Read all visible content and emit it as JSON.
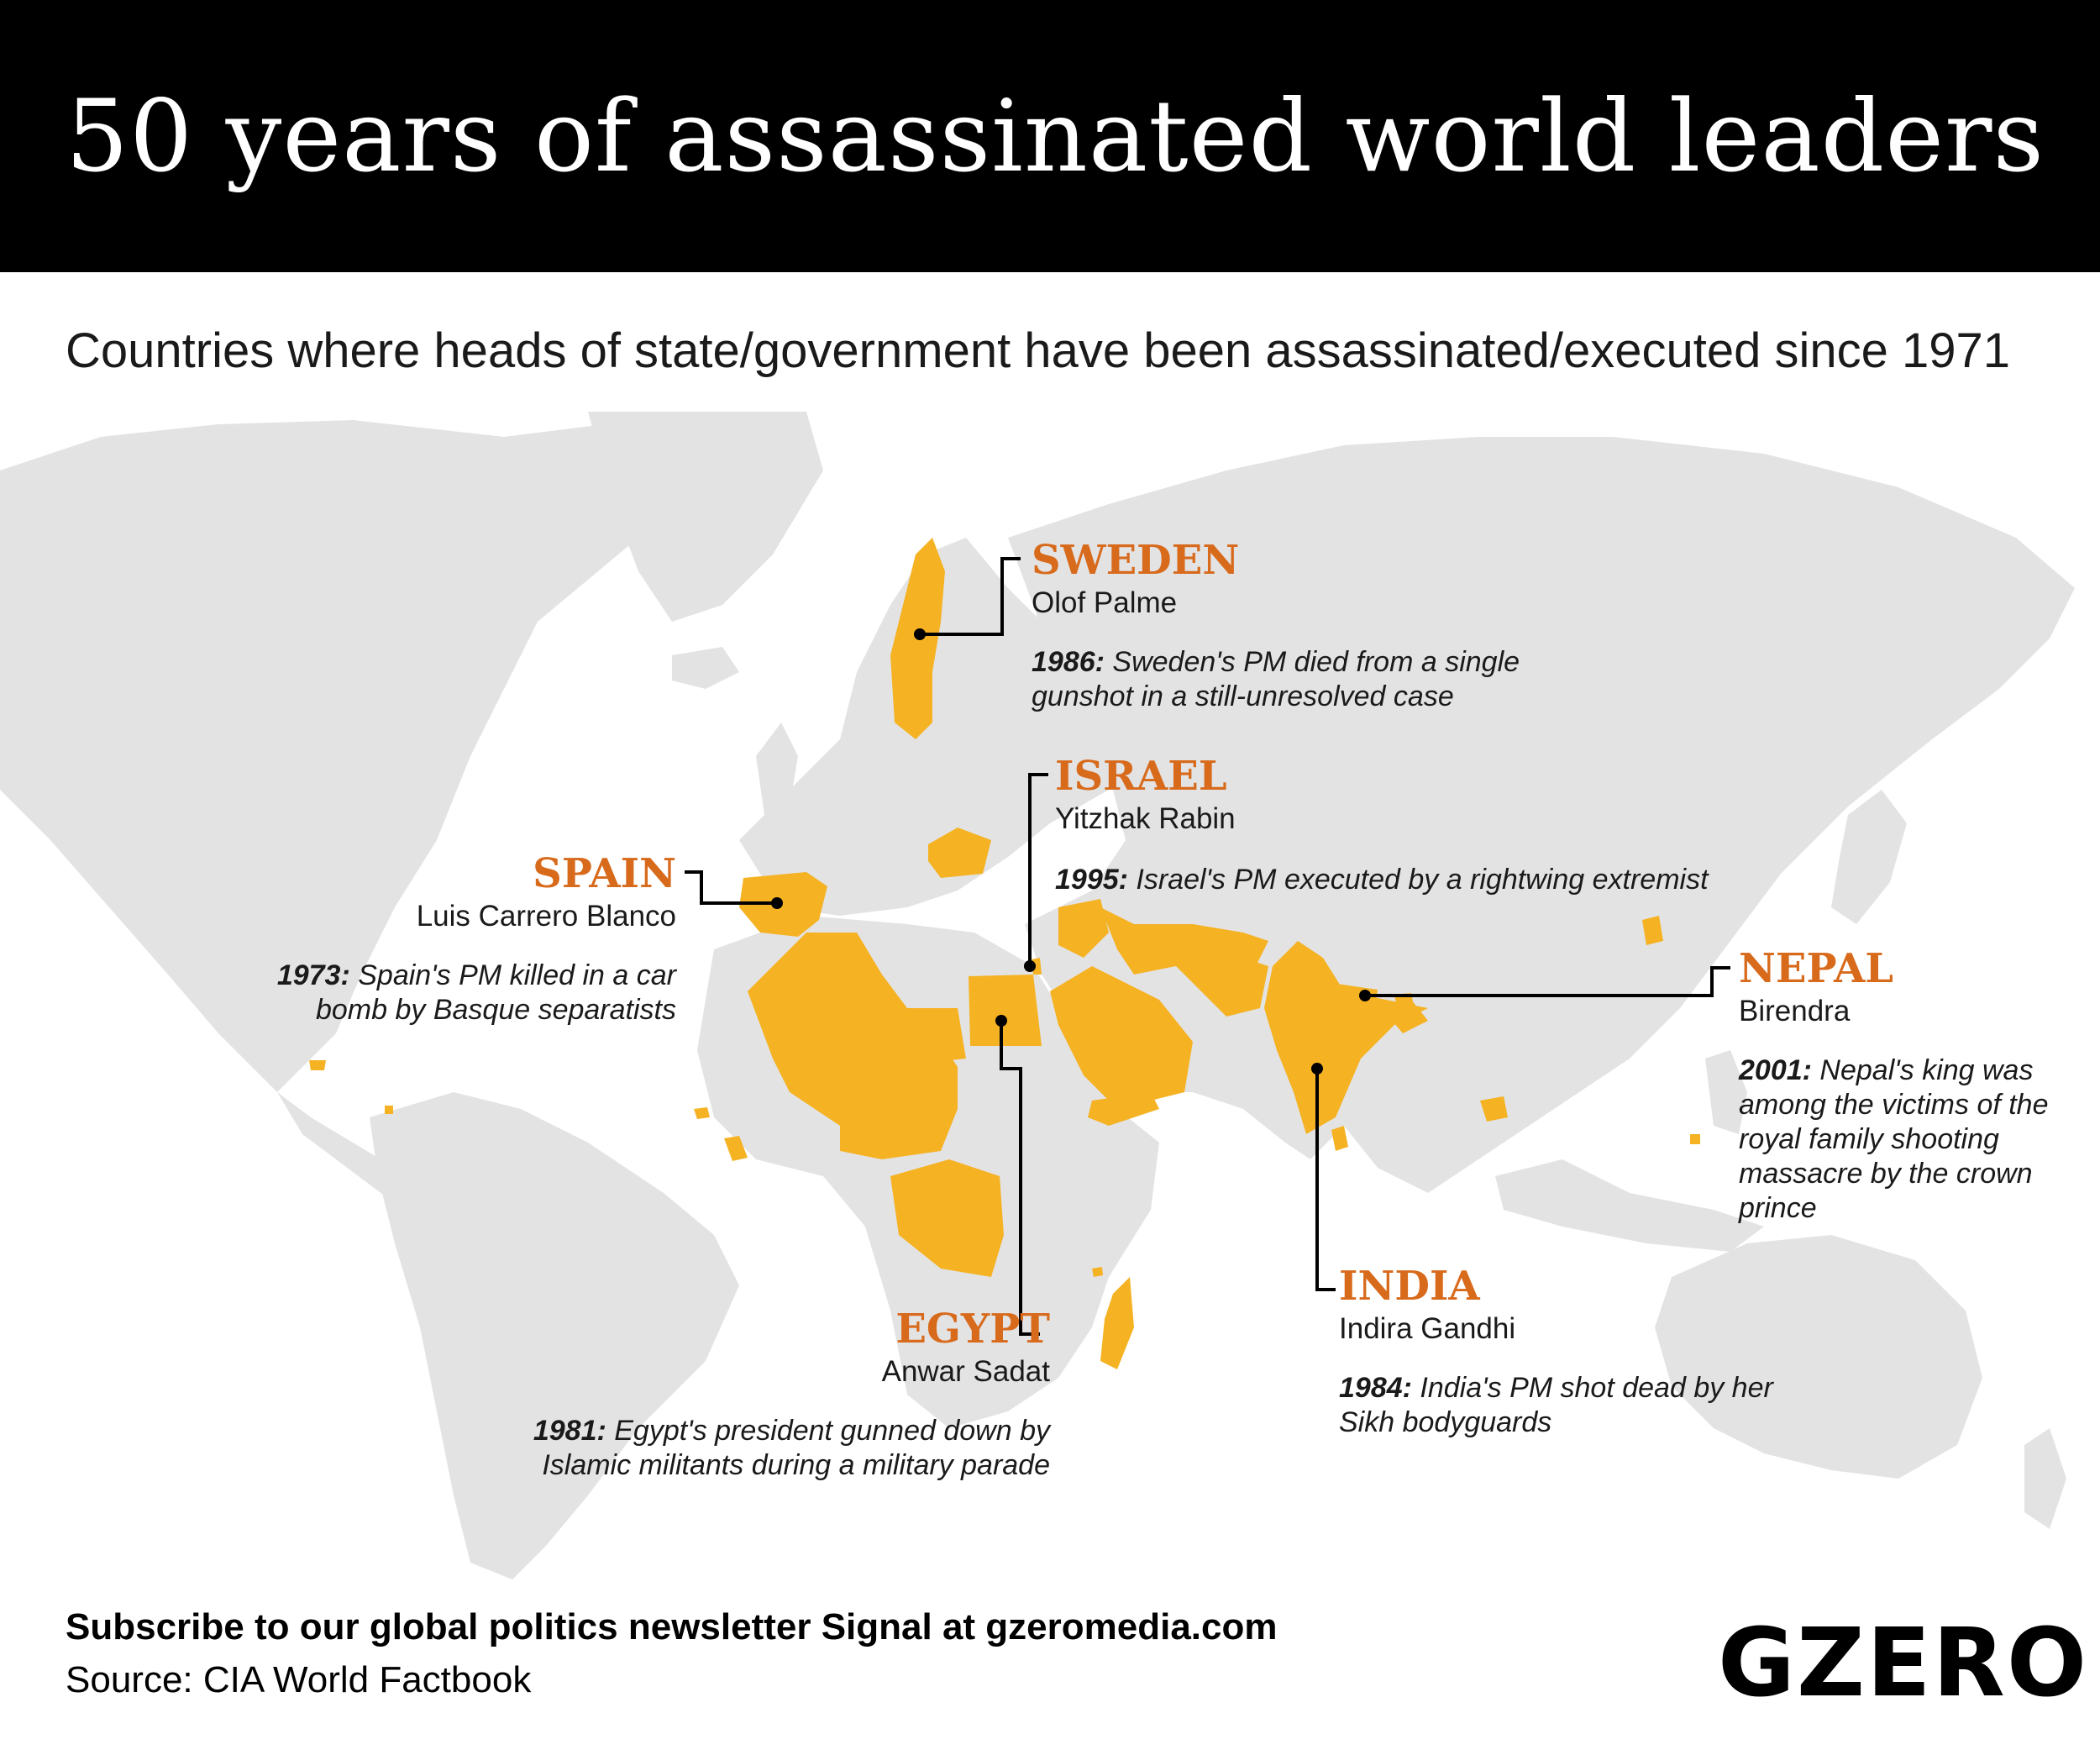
{
  "title": "50 years of assassinated world leaders",
  "subtitle": "Countries where heads of state/government have been assassinated/executed since 1971",
  "colors": {
    "highlight": "#F5B223",
    "land": "#E3E3E3",
    "header_bg": "#000000",
    "country_label": "#D86A1C",
    "leader_line": "#000000"
  },
  "callouts": {
    "sweden": {
      "country": "SWEDEN",
      "leader": "Olof Palme",
      "year": "1986:",
      "text": " Sweden's PM died from a single gunshot in a still-unresolved case"
    },
    "israel": {
      "country": "ISRAEL",
      "leader": "Yitzhak Rabin",
      "year": "1995:",
      "text": " Israel's PM executed by a rightwing extremist"
    },
    "spain": {
      "country": "SPAIN",
      "leader": "Luis Carrero Blanco",
      "year": "1973:",
      "text": " Spain's PM killed in a car bomb by Basque separatists"
    },
    "nepal": {
      "country": "NEPAL",
      "leader": "Birendra",
      "year": "2001:",
      "text": " Nepal's king was among the victims of the royal family shooting massacre by the crown prince"
    },
    "egypt": {
      "country": "EGYPT",
      "leader": "Anwar Sadat",
      "year": "1981:",
      "text": " Egypt's president gunned down by Islamic militants during a military parade"
    },
    "india": {
      "country": "INDIA",
      "leader": "Indira Gandhi",
      "year": "1984:",
      "text": " India's PM shot dead by her Sikh bodyguards"
    }
  },
  "footer": {
    "cta": "Subscribe to our global politics newsletter Signal at gzeromedia.com",
    "source": "Source: CIA World Factbook",
    "logo": "GZERO"
  }
}
